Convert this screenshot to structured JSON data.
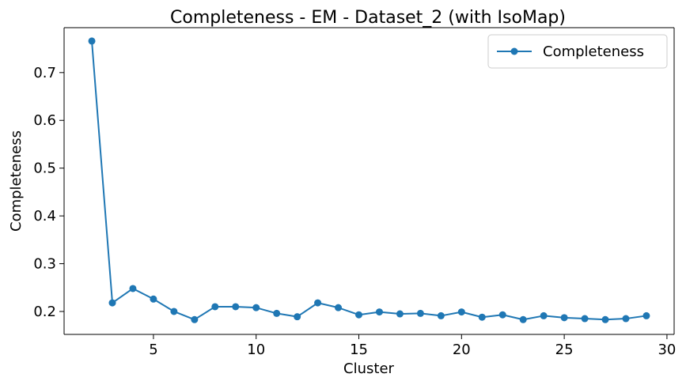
{
  "chart_data": {
    "type": "line",
    "title": "Completeness - EM - Dataset_2 (with IsoMap)",
    "xlabel": "Cluster",
    "ylabel": "Completeness",
    "xlim": [
      0.65,
      30.35
    ],
    "ylim": [
      0.152,
      0.794
    ],
    "xticks": [
      5,
      10,
      15,
      20,
      25,
      30
    ],
    "yticks": [
      0.2,
      0.3,
      0.4,
      0.5,
      0.6,
      0.7
    ],
    "xtick_labels": [
      "5",
      "10",
      "15",
      "20",
      "25",
      "30"
    ],
    "ytick_labels": [
      "0.2",
      "0.3",
      "0.4",
      "0.5",
      "0.6",
      "0.7"
    ],
    "grid": false,
    "legend": {
      "position": "top-right",
      "entries": [
        "Completeness"
      ]
    },
    "series": [
      {
        "name": "Completeness",
        "color": "#1f77b4",
        "marker": "circle",
        "x": [
          2,
          3,
          4,
          5,
          6,
          7,
          8,
          9,
          10,
          11,
          12,
          13,
          14,
          15,
          16,
          17,
          18,
          19,
          20,
          21,
          22,
          23,
          24,
          25,
          26,
          27,
          28,
          29
        ],
        "y": [
          0.766,
          0.218,
          0.248,
          0.226,
          0.2,
          0.183,
          0.21,
          0.21,
          0.208,
          0.196,
          0.189,
          0.218,
          0.208,
          0.193,
          0.199,
          0.195,
          0.196,
          0.191,
          0.199,
          0.188,
          0.193,
          0.183,
          0.191,
          0.187,
          0.185,
          0.183,
          0.185,
          0.191
        ]
      }
    ]
  }
}
